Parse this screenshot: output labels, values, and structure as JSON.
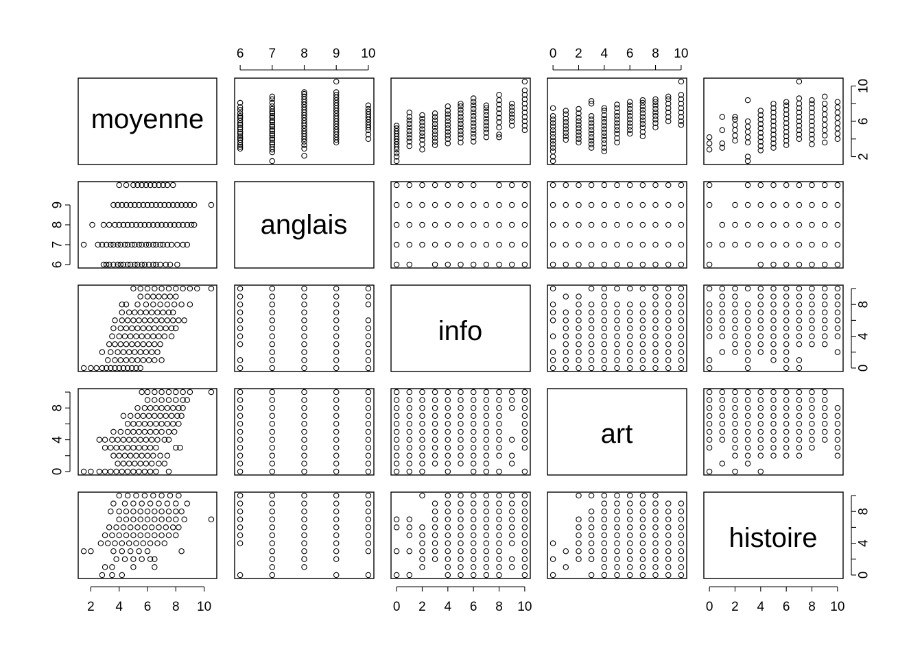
{
  "chart_data": {
    "type": "scatter",
    "variables": [
      "moyenne",
      "anglais",
      "info",
      "art",
      "histoire"
    ],
    "ranges": {
      "moyenne": [
        1.5,
        10.5
      ],
      "anglais": [
        6,
        10
      ],
      "info": [
        0,
        10
      ],
      "art": [
        0,
        10
      ],
      "histoire": [
        0,
        10
      ]
    },
    "ticks": {
      "moyenne": [
        2,
        4,
        6,
        8,
        10
      ],
      "anglais": [
        6,
        7,
        8,
        9,
        10
      ],
      "info": [
        0,
        2,
        4,
        6,
        8,
        10
      ],
      "art": [
        0,
        2,
        4,
        6,
        8,
        10
      ],
      "histoire": [
        0,
        2,
        4,
        6,
        8,
        10
      ]
    },
    "left_axis_ticks": {
      "anglais": [
        6,
        7,
        8,
        9
      ],
      "info": [
        0,
        2,
        4,
        6,
        8,
        10
      ],
      "art": [
        0,
        2,
        4,
        6,
        8,
        10
      ],
      "histoire": [
        0,
        2,
        4,
        6,
        8,
        10
      ]
    },
    "right_axis_ticks": {
      "moyenne": [
        2,
        4,
        6,
        8,
        10
      ],
      "info": [
        0,
        2,
        4,
        6,
        8,
        10
      ],
      "histoire": [
        0,
        2,
        4,
        6,
        8,
        10
      ]
    },
    "axes": {
      "top_columns": [
        "anglais",
        "art"
      ],
      "bottom_columns": [
        "moyenne",
        "info",
        "histoire"
      ],
      "left_rows": [
        "anglais",
        "art"
      ],
      "right_rows": [
        "moyenne",
        "info"
      ]
    },
    "moyenne_by_anglais": {
      "6": [
        2.9,
        3.1,
        3.3,
        3.6,
        3.9,
        4.1,
        4.3,
        4.6,
        4.8,
        5.1,
        5.3,
        5.6,
        5.8,
        6.1,
        6.4,
        6.6,
        6.9,
        7.3,
        7.6,
        8.1
      ],
      "7": [
        1.5,
        2.5,
        2.8,
        3.1,
        3.4,
        3.6,
        3.9,
        4.1,
        4.4,
        4.6,
        4.9,
        5.1,
        5.4,
        5.6,
        5.9,
        6.1,
        6.4,
        6.6,
        6.9,
        7.1,
        7.4,
        7.7,
        8.1,
        8.5,
        8.8
      ],
      "8": [
        2.1,
        2.9,
        3.3,
        3.7,
        4.0,
        4.3,
        4.6,
        4.9,
        5.2,
        5.5,
        5.8,
        6.1,
        6.4,
        6.7,
        7.0,
        7.3,
        7.6,
        7.9,
        8.2,
        8.5,
        8.8,
        9.1,
        9.3
      ],
      "9": [
        3.6,
        3.9,
        4.2,
        4.5,
        4.8,
        5.1,
        5.4,
        5.7,
        6.0,
        6.3,
        6.6,
        6.9,
        7.2,
        7.5,
        7.8,
        8.1,
        8.4,
        8.7,
        9.0,
        9.3,
        10.5
      ],
      "10": [
        4.0,
        4.5,
        5.0,
        5.3,
        5.6,
        5.9,
        6.2,
        6.5,
        6.8,
        7.1,
        7.4,
        7.8
      ]
    },
    "moyenne_by_info": {
      "0": [
        1.5,
        2.0,
        2.4,
        2.8,
        3.1,
        3.4,
        3.7,
        4.0,
        4.3,
        4.6,
        4.9,
        5.2,
        5.5
      ],
      "1": [
        3.2,
        3.7,
        4.1,
        4.5,
        4.9,
        5.3,
        5.7,
        6.1,
        6.5,
        7.0
      ],
      "2": [
        2.8,
        3.4,
        3.9,
        4.3,
        4.7,
        5.1,
        5.5,
        5.9,
        6.3,
        6.7
      ],
      "3": [
        3.3,
        3.7,
        4.1,
        4.5,
        4.9,
        5.3,
        5.7,
        6.1,
        6.5,
        6.9
      ],
      "4": [
        3.5,
        4.0,
        4.4,
        4.8,
        5.2,
        5.6,
        6.0,
        6.4,
        6.8,
        7.2,
        7.7
      ],
      "5": [
        3.6,
        4.1,
        4.5,
        4.9,
        5.3,
        5.7,
        6.1,
        6.5,
        6.9,
        7.3,
        7.7,
        8.0
      ],
      "6": [
        3.7,
        4.2,
        4.6,
        5.0,
        5.4,
        5.8,
        6.2,
        6.6,
        7.0,
        7.4,
        7.8,
        8.2,
        8.6
      ],
      "7": [
        4.2,
        4.7,
        5.1,
        5.5,
        5.9,
        6.3,
        6.7,
        7.1,
        7.5,
        7.8
      ],
      "8": [
        4.2,
        4.5,
        5.3,
        5.9,
        6.4,
        6.9,
        7.4,
        7.9,
        8.4,
        9.0
      ],
      "9": [
        5.5,
        6.0,
        6.4,
        6.8,
        7.2,
        7.6,
        8.0
      ],
      "10": [
        5.0,
        5.5,
        6.0,
        6.5,
        7.0,
        7.5,
        8.0,
        8.5,
        9.0,
        9.5,
        10.5
      ]
    },
    "moyenne_by_art": {
      "0": [
        1.5,
        2.0,
        2.6,
        3.0,
        3.4,
        3.8,
        4.2,
        4.6,
        5.0,
        5.4,
        5.8,
        6.2,
        6.6,
        7.5
      ],
      "1": [
        3.9,
        4.3,
        4.7,
        5.1,
        5.5,
        5.9,
        6.3,
        6.8,
        7.2
      ],
      "2": [
        3.6,
        4.0,
        4.4,
        4.8,
        5.2,
        5.6,
        6.0,
        6.4,
        6.9,
        7.4
      ],
      "3": [
        3.0,
        3.4,
        3.8,
        4.2,
        4.6,
        5.0,
        5.4,
        5.8,
        6.2,
        6.6,
        8.0,
        8.3
      ],
      "4": [
        2.6,
        3.0,
        3.5,
        3.9,
        4.3,
        4.7,
        5.1,
        5.5,
        5.9,
        6.3,
        6.7,
        7.2,
        7.5
      ],
      "5": [
        3.6,
        4.1,
        4.6,
        5.0,
        5.4,
        5.8,
        6.2,
        6.6,
        7.0,
        7.5,
        7.9
      ],
      "6": [
        4.6,
        5.0,
        5.4,
        5.8,
        6.2,
        6.6,
        7.0,
        7.4,
        7.8,
        8.2
      ],
      "7": [
        4.3,
        4.8,
        5.3,
        5.7,
        6.1,
        6.5,
        6.9,
        7.3,
        7.7,
        8.1,
        8.4
      ],
      "8": [
        5.3,
        5.8,
        6.2,
        6.6,
        7.0,
        7.4,
        7.8,
        8.2,
        8.5
      ],
      "9": [
        6.0,
        6.5,
        7.0,
        7.5,
        8.0,
        8.5,
        8.8
      ],
      "10": [
        5.6,
        6.0,
        6.5,
        7.0,
        7.5,
        8.0,
        8.5,
        9.0,
        10.5
      ]
    },
    "moyenne_by_histoire": {
      "0": [
        2.8,
        3.5,
        4.2
      ],
      "1": [
        3.0,
        3.5,
        5.0,
        6.5
      ],
      "2": [
        3.8,
        4.4,
        5.0,
        5.6,
        6.2,
        6.5
      ],
      "3": [
        1.5,
        2.0,
        3.6,
        4.2,
        4.8,
        5.4,
        6.0,
        8.4
      ],
      "4": [
        2.7,
        3.2,
        3.7,
        4.2,
        4.7,
        5.2,
        5.7,
        6.2,
        6.7,
        7.2
      ],
      "5": [
        3.0,
        3.5,
        4.0,
        4.5,
        5.0,
        5.5,
        6.0,
        6.5,
        7.0,
        7.5,
        8.0
      ],
      "6": [
        3.3,
        3.8,
        4.3,
        4.8,
        5.3,
        5.8,
        6.3,
        6.8,
        7.3,
        7.8,
        8.2
      ],
      "7": [
        4.0,
        4.5,
        5.0,
        5.5,
        6.0,
        6.5,
        7.0,
        7.5,
        8.0,
        8.6,
        10.5
      ],
      "8": [
        3.4,
        4.0,
        4.5,
        5.0,
        5.5,
        6.0,
        6.5,
        7.0,
        7.5,
        8.0,
        8.4
      ],
      "9": [
        3.6,
        4.4,
        5.0,
        5.6,
        6.2,
        6.8,
        7.4,
        8.0,
        8.8
      ],
      "10": [
        4.0,
        4.6,
        5.2,
        5.8,
        6.4,
        7.0,
        7.6,
        8.2
      ]
    },
    "anglais_info": {
      "6": [
        0,
        1,
        3,
        4,
        5,
        6,
        7,
        8,
        9,
        10
      ],
      "7": [
        0,
        1,
        2,
        3,
        4,
        5,
        6,
        7,
        8,
        9,
        10
      ],
      "8": [
        0,
        1,
        2,
        3,
        4,
        5,
        6,
        7,
        8,
        9,
        10
      ],
      "9": [
        0,
        1,
        2,
        3,
        4,
        5,
        6,
        7,
        8,
        9,
        10
      ],
      "10": [
        0,
        1,
        2,
        3,
        4,
        5,
        6,
        8,
        9,
        10
      ]
    },
    "anglais_art": {
      "6": [
        0,
        1,
        2,
        3,
        4,
        5,
        6,
        7,
        8,
        9,
        10
      ],
      "7": [
        0,
        1,
        2,
        3,
        4,
        5,
        6,
        7,
        8,
        9,
        10
      ],
      "8": [
        0,
        1,
        2,
        3,
        4,
        5,
        6,
        7,
        8,
        9,
        10
      ],
      "9": [
        0,
        1,
        2,
        3,
        4,
        5,
        6,
        7,
        8,
        9,
        10
      ],
      "10": [
        0,
        1,
        2,
        3,
        4,
        5,
        6,
        7,
        8,
        9,
        10
      ]
    },
    "anglais_histoire": {
      "6": [
        0,
        4,
        5,
        6,
        7,
        8,
        9,
        10
      ],
      "7": [
        0,
        1,
        2,
        3,
        4,
        5,
        6,
        7,
        8,
        9,
        10
      ],
      "8": [
        1,
        2,
        3,
        4,
        5,
        6,
        7,
        8,
        9,
        10
      ],
      "9": [
        0,
        2,
        3,
        4,
        5,
        6,
        7,
        8,
        9,
        10
      ],
      "10": [
        0,
        3,
        4,
        5,
        6,
        7,
        8,
        9,
        10
      ]
    },
    "info_by_anglais": {
      "6": [
        0,
        1,
        3,
        4,
        5,
        6,
        7,
        8,
        9,
        10
      ],
      "7": [
        0,
        1,
        2,
        3,
        4,
        5,
        6,
        7,
        8,
        9,
        10
      ],
      "8": [
        0,
        1,
        2,
        3,
        4,
        5,
        6,
        7,
        8,
        9,
        10
      ],
      "9": [
        0,
        1,
        2,
        3,
        4,
        5,
        6,
        7,
        8,
        9,
        10
      ],
      "10": [
        0,
        1,
        2,
        3,
        4,
        5,
        6,
        8,
        9,
        10
      ]
    },
    "art_by_anglais": {
      "6": [
        0,
        1,
        2,
        3,
        4,
        5,
        6,
        7,
        8,
        9,
        10
      ],
      "7": [
        0,
        1,
        2,
        3,
        4,
        5,
        6,
        7,
        8,
        9,
        10
      ],
      "8": [
        0,
        1,
        2,
        3,
        4,
        5,
        6,
        7,
        8,
        9,
        10
      ],
      "9": [
        0,
        1,
        2,
        3,
        4,
        5,
        6,
        7,
        8,
        9,
        10
      ],
      "10": [
        0,
        1,
        2,
        3,
        4,
        5,
        6,
        7,
        8,
        9,
        10
      ]
    },
    "histoire_by_anglais": {
      "6": [
        0,
        4,
        5,
        6,
        7,
        8,
        9,
        10
      ],
      "7": [
        0,
        1,
        2,
        3,
        4,
        5,
        6,
        7,
        8,
        9,
        10
      ],
      "8": [
        1,
        2,
        3,
        4,
        5,
        6,
        7,
        8,
        9,
        10
      ],
      "9": [
        0,
        2,
        3,
        4,
        5,
        6,
        7,
        8,
        9,
        10
      ],
      "10": [
        0,
        3,
        4,
        5,
        6,
        7,
        8,
        9,
        10
      ]
    },
    "info_art": {
      "0": [
        0,
        1,
        2,
        3,
        4,
        5,
        6,
        7,
        8,
        9,
        10
      ],
      "1": [
        0,
        1,
        2,
        3,
        4,
        5,
        6,
        7,
        8,
        9,
        10
      ],
      "2": [
        0,
        1,
        2,
        3,
        4,
        5,
        6,
        7,
        8,
        9,
        10
      ],
      "3": [
        1,
        2,
        3,
        4,
        5,
        6,
        7,
        8,
        9,
        10
      ],
      "4": [
        0,
        1,
        2,
        3,
        4,
        5,
        6,
        7,
        8,
        9,
        10
      ],
      "5": [
        1,
        2,
        3,
        4,
        5,
        6,
        7,
        8,
        9,
        10
      ],
      "6": [
        0,
        1,
        2,
        3,
        4,
        5,
        6,
        7,
        8,
        9,
        10
      ],
      "7": [
        0,
        1,
        2,
        3,
        4,
        5,
        6,
        7,
        8,
        9,
        10
      ],
      "8": [
        0,
        2,
        3,
        4,
        5,
        6,
        7,
        8,
        9,
        10
      ],
      "9": [
        1,
        2,
        4,
        8,
        9,
        10
      ],
      "10": [
        0,
        3,
        4,
        5,
        6,
        7,
        8,
        9,
        10
      ]
    },
    "info_histoire": {
      "0": [
        0,
        3,
        6,
        7
      ],
      "1": [
        0,
        3,
        5,
        6,
        7
      ],
      "2": [
        1,
        2,
        3,
        4,
        5,
        6,
        10
      ],
      "3": [
        2,
        3,
        4,
        5,
        6,
        7,
        8,
        9
      ],
      "4": [
        0,
        1,
        2,
        3,
        4,
        5,
        6,
        7,
        8,
        9,
        10
      ],
      "5": [
        0,
        1,
        2,
        3,
        4,
        5,
        6,
        7,
        8,
        9,
        10
      ],
      "6": [
        0,
        1,
        2,
        3,
        4,
        5,
        6,
        7,
        8,
        9,
        10
      ],
      "7": [
        0,
        1,
        2,
        3,
        4,
        5,
        6,
        7,
        8,
        9,
        10
      ],
      "8": [
        0,
        1,
        2,
        3,
        4,
        5,
        6,
        7,
        8,
        9,
        10
      ],
      "9": [
        1,
        2,
        4,
        5,
        6,
        7,
        8,
        9,
        10
      ],
      "10": [
        0,
        1,
        2,
        3,
        4,
        5,
        6,
        7,
        8,
        9,
        10
      ]
    },
    "art_histoire": {
      "0": [
        0,
        2,
        4
      ],
      "1": [
        1,
        3
      ],
      "2": [
        2,
        3,
        4,
        5,
        6,
        7,
        10
      ],
      "3": [
        0,
        2,
        3,
        4,
        5,
        6,
        7,
        8,
        10
      ],
      "4": [
        0,
        1,
        2,
        3,
        4,
        5,
        6,
        7,
        8,
        9,
        10
      ],
      "5": [
        0,
        1,
        2,
        3,
        4,
        5,
        6,
        7,
        8,
        9,
        10
      ],
      "6": [
        0,
        1,
        2,
        3,
        4,
        5,
        6,
        7,
        8,
        9,
        10
      ],
      "7": [
        0,
        1,
        2,
        3,
        4,
        5,
        6,
        7,
        8,
        9,
        10
      ],
      "8": [
        0,
        1,
        2,
        3,
        4,
        5,
        6,
        7,
        8,
        9,
        10
      ],
      "9": [
        0,
        1,
        2,
        3,
        4,
        5,
        6,
        7,
        8,
        9
      ],
      "10": [
        0,
        1,
        2,
        3,
        4,
        5,
        6,
        7,
        8,
        9
      ]
    }
  }
}
